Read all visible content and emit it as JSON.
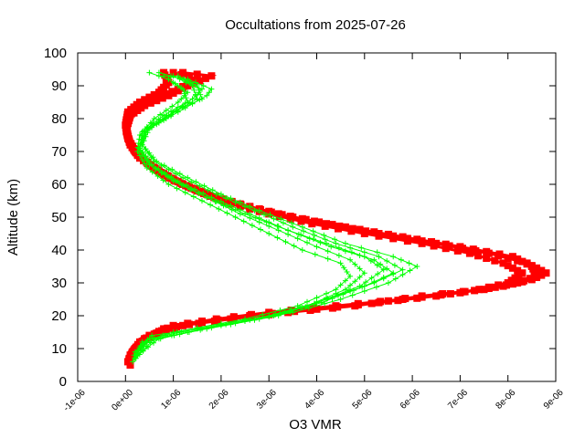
{
  "chart_data": {
    "type": "scatter",
    "title": "Occultations from 2025-07-26",
    "xlabel": "O3 VMR",
    "ylabel": "Altitude (km)",
    "xlim": [
      -1e-06,
      9e-06
    ],
    "ylim": [
      0,
      100
    ],
    "x_ticks": [
      {
        "value": -1e-06,
        "label": "-1e-06"
      },
      {
        "value": 0,
        "label": "0e+00"
      },
      {
        "value": 1e-06,
        "label": "1e-06"
      },
      {
        "value": 2e-06,
        "label": "2e-06"
      },
      {
        "value": 3e-06,
        "label": "3e-06"
      },
      {
        "value": 4e-06,
        "label": "4e-06"
      },
      {
        "value": 5e-06,
        "label": "5e-06"
      },
      {
        "value": 6e-06,
        "label": "6e-06"
      },
      {
        "value": 7e-06,
        "label": "7e-06"
      },
      {
        "value": 8e-06,
        "label": "8e-06"
      },
      {
        "value": 9e-06,
        "label": "9e-06"
      }
    ],
    "y_ticks": [
      {
        "value": 0,
        "label": "0"
      },
      {
        "value": 10,
        "label": "10"
      },
      {
        "value": 20,
        "label": "20"
      },
      {
        "value": 30,
        "label": "30"
      },
      {
        "value": 40,
        "label": "40"
      },
      {
        "value": 50,
        "label": "50"
      },
      {
        "value": 60,
        "label": "60"
      },
      {
        "value": 70,
        "label": "70"
      },
      {
        "value": 80,
        "label": "80"
      },
      {
        "value": 90,
        "label": "90"
      },
      {
        "value": 100,
        "label": "100"
      }
    ],
    "grid": false,
    "series": [
      {
        "marker": "plus",
        "color": "#00ff00",
        "profiles": [
          [
            [
              1.5e-07,
              6
            ],
            [
              3.5e-07,
              12
            ],
            [
              1e-06,
              15
            ],
            [
              2.5e-06,
              19
            ],
            [
              3.6e-06,
              23
            ],
            [
              4.4e-06,
              28
            ],
            [
              4.7e-06,
              32
            ],
            [
              4.5e-06,
              36
            ],
            [
              3.7e-06,
              40
            ],
            [
              3e-06,
              45
            ],
            [
              2.3e-06,
              50
            ],
            [
              1.6e-06,
              55
            ],
            [
              9e-07,
              60
            ],
            [
              4.5e-07,
              65
            ],
            [
              2.5e-07,
              70
            ],
            [
              3e-07,
              75
            ],
            [
              6e-07,
              80
            ],
            [
              1.1e-06,
              85
            ],
            [
              1.3e-06,
              88
            ],
            [
              9e-07,
              92
            ],
            [
              5e-07,
              94
            ]
          ],
          [
            [
              2e-07,
              7
            ],
            [
              4.5e-07,
              12
            ],
            [
              1.3e-06,
              15
            ],
            [
              2.8e-06,
              19
            ],
            [
              3.8e-06,
              23
            ],
            [
              4.6e-06,
              28
            ],
            [
              5e-06,
              33
            ],
            [
              4.7e-06,
              37
            ],
            [
              4e-06,
              41
            ],
            [
              3.2e-06,
              46
            ],
            [
              2.4e-06,
              51
            ],
            [
              1.7e-06,
              56
            ],
            [
              1e-06,
              61
            ],
            [
              5e-07,
              66
            ],
            [
              3e-07,
              71
            ],
            [
              3.5e-07,
              76
            ],
            [
              8e-07,
              81
            ],
            [
              1.4e-06,
              86
            ],
            [
              1.6e-06,
              89
            ],
            [
              1.2e-06,
              92
            ],
            [
              7e-07,
              94
            ]
          ],
          [
            [
              1.8e-07,
              8
            ],
            [
              5e-07,
              13
            ],
            [
              1.5e-06,
              16
            ],
            [
              3e-06,
              20
            ],
            [
              4e-06,
              24
            ],
            [
              4.9e-06,
              29
            ],
            [
              5.4e-06,
              34
            ],
            [
              5e-06,
              38
            ],
            [
              4.2e-06,
              42
            ],
            [
              3.4e-06,
              46
            ],
            [
              2.6e-06,
              51
            ],
            [
              1.8e-06,
              56
            ],
            [
              1.1e-06,
              61
            ],
            [
              5.5e-07,
              66
            ],
            [
              3e-07,
              71
            ],
            [
              4e-07,
              76
            ],
            [
              9e-07,
              81
            ],
            [
              1.5e-06,
              86
            ],
            [
              1.4e-06,
              90
            ],
            [
              1e-06,
              93
            ]
          ],
          [
            [
              2.2e-07,
              7
            ],
            [
              6e-07,
              13
            ],
            [
              1.7e-06,
              16
            ],
            [
              3.2e-06,
              20
            ],
            [
              4.2e-06,
              25
            ],
            [
              5.2e-06,
              30
            ],
            [
              5.8e-06,
              34
            ],
            [
              5.3e-06,
              38
            ],
            [
              4.4e-06,
              42
            ],
            [
              3.5e-06,
              47
            ],
            [
              2.7e-06,
              52
            ],
            [
              1.9e-06,
              57
            ],
            [
              1.2e-06,
              62
            ],
            [
              6e-07,
              67
            ],
            [
              3.5e-07,
              72
            ],
            [
              4.5e-07,
              77
            ],
            [
              1e-06,
              82
            ],
            [
              1.6e-06,
              86
            ],
            [
              1.5e-06,
              90
            ],
            [
              1.1e-06,
              93
            ]
          ],
          [
            [
              2.5e-07,
              8
            ],
            [
              7e-07,
              13
            ],
            [
              2e-06,
              17
            ],
            [
              3.5e-06,
              21
            ],
            [
              4.5e-06,
              25
            ],
            [
              5.5e-06,
              30
            ],
            [
              6.1e-06,
              35
            ],
            [
              5.6e-06,
              38
            ],
            [
              4.6e-06,
              42
            ],
            [
              3.7e-06,
              47
            ],
            [
              2.8e-06,
              52
            ],
            [
              2e-06,
              57
            ],
            [
              1.3e-06,
              62
            ],
            [
              6.5e-07,
              67
            ],
            [
              3.5e-07,
              72
            ],
            [
              5e-07,
              77
            ],
            [
              1.1e-06,
              82
            ],
            [
              1.7e-06,
              87
            ],
            [
              1.8e-06,
              89
            ],
            [
              1.3e-06,
              92
            ],
            [
              8e-07,
              93
            ]
          ],
          [
            [
              2e-07,
              9
            ],
            [
              5.5e-07,
              14
            ],
            [
              1.6e-06,
              16
            ],
            [
              3.1e-06,
              20
            ],
            [
              4.1e-06,
              24
            ],
            [
              5e-06,
              29
            ],
            [
              5.6e-06,
              33
            ],
            [
              5.2e-06,
              37
            ],
            [
              4.3e-06,
              41
            ],
            [
              3.4e-06,
              46
            ],
            [
              2.5e-06,
              51
            ],
            [
              1.7e-06,
              56
            ],
            [
              1.05e-06,
              61
            ],
            [
              5e-07,
              66
            ],
            [
              2.8e-07,
              71
            ],
            [
              4e-07,
              76
            ],
            [
              8.5e-07,
              80
            ],
            [
              1.3e-06,
              85
            ],
            [
              1.2e-06,
              89
            ],
            [
              9e-07,
              92
            ]
          ]
        ]
      },
      {
        "marker": "square",
        "color": "#ff0000",
        "profiles": [
          [
            [
              1e-07,
              5
            ],
            [
              1e-07,
              8
            ],
            [
              3e-07,
              12
            ],
            [
              8e-07,
              16
            ],
            [
              1.6e-06,
              18
            ],
            [
              2.6e-06,
              20
            ],
            [
              4e-06,
              22
            ],
            [
              5.3e-06,
              24
            ],
            [
              6.5e-06,
              26
            ],
            [
              7.4e-06,
              28
            ],
            [
              8e-06,
              30
            ],
            [
              8.3e-06,
              33
            ],
            [
              7.9e-06,
              36
            ],
            [
              7.2e-06,
              39
            ],
            [
              6.2e-06,
              42
            ],
            [
              5e-06,
              45
            ],
            [
              3.9e-06,
              48
            ],
            [
              3e-06,
              51
            ],
            [
              2.2e-06,
              54
            ],
            [
              1.5e-06,
              58
            ],
            [
              9e-07,
              62
            ],
            [
              5e-07,
              66
            ],
            [
              2e-07,
              70
            ],
            [
              5e-08,
              74
            ],
            [
              0.0,
              78
            ],
            [
              5e-08,
              82
            ],
            [
              3e-07,
              85
            ],
            [
              7e-07,
              88
            ],
            [
              9e-07,
              91
            ],
            [
              8e-07,
              94
            ]
          ],
          [
            [
              5e-08,
              6
            ],
            [
              1.5e-07,
              9
            ],
            [
              4e-07,
              13
            ],
            [
              1e-06,
              17
            ],
            [
              1.9e-06,
              19
            ],
            [
              3e-06,
              21
            ],
            [
              4.4e-06,
              23
            ],
            [
              5.8e-06,
              25
            ],
            [
              7e-06,
              27
            ],
            [
              7.9e-06,
              29
            ],
            [
              8.5e-06,
              31
            ],
            [
              8.8e-06,
              33
            ],
            [
              8.4e-06,
              36
            ],
            [
              7.6e-06,
              39
            ],
            [
              6.5e-06,
              42
            ],
            [
              5.3e-06,
              45
            ],
            [
              4.2e-06,
              48
            ],
            [
              3.2e-06,
              51
            ],
            [
              2.4e-06,
              54
            ],
            [
              1.7e-06,
              57
            ],
            [
              1.05e-06,
              61
            ],
            [
              6e-07,
              65
            ],
            [
              2.5e-07,
              69
            ],
            [
              8e-08,
              73
            ],
            [
              2e-08,
              77
            ],
            [
              1e-07,
              81
            ],
            [
              4e-07,
              84
            ],
            [
              9e-07,
              87
            ],
            [
              1.3e-06,
              90
            ],
            [
              1.8e-06,
              93
            ],
            [
              1.2e-06,
              94
            ]
          ],
          [
            [
              8e-08,
              7
            ],
            [
              2e-07,
              10
            ],
            [
              5e-07,
              14
            ],
            [
              1.2e-06,
              17
            ],
            [
              2.2e-06,
              19
            ],
            [
              3.4e-06,
              21
            ],
            [
              4.8e-06,
              23
            ],
            [
              6.2e-06,
              26
            ],
            [
              7.5e-06,
              28
            ],
            [
              8.2e-06,
              30
            ],
            [
              8.6e-06,
              32
            ],
            [
              8.5e-06,
              35
            ],
            [
              8.1e-06,
              38
            ],
            [
              7e-06,
              41
            ],
            [
              5.8e-06,
              44
            ],
            [
              4.6e-06,
              47
            ],
            [
              3.5e-06,
              50
            ],
            [
              2.6e-06,
              53
            ],
            [
              1.85e-06,
              56
            ],
            [
              1.2e-06,
              60
            ],
            [
              7e-07,
              64
            ],
            [
              3e-07,
              68
            ],
            [
              1e-07,
              72
            ],
            [
              2e-08,
              76
            ],
            [
              5e-08,
              80
            ],
            [
              2e-07,
              83
            ],
            [
              6e-07,
              86
            ],
            [
              1.1e-06,
              89
            ],
            [
              1.5e-06,
              92
            ],
            [
              1e-06,
              94
            ]
          ]
        ]
      }
    ]
  }
}
